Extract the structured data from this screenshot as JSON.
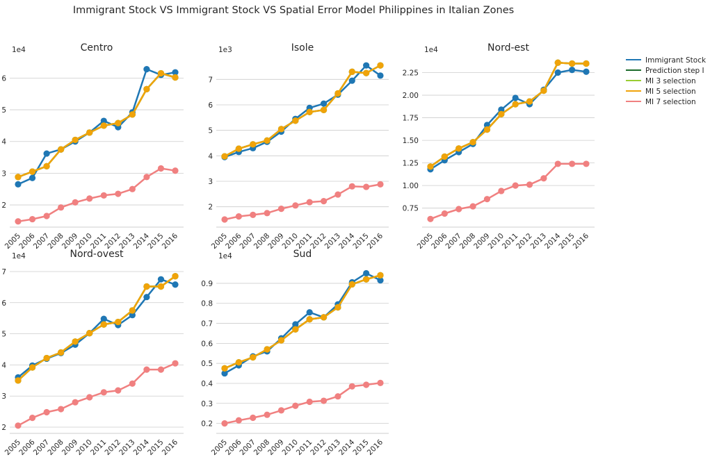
{
  "figure": {
    "title": "Immigrant Stock VS Immigrant Stock VS Spatial Error Model Philippines in Italian Zones"
  },
  "legend": {
    "placement": "right",
    "entries": [
      {
        "name": "Immigrant Stock",
        "color": "#1f77b4"
      },
      {
        "name": "Prediction step I",
        "color": "#1a6b2a"
      },
      {
        "name": "MI 3 selection",
        "color": "#9acd32"
      },
      {
        "name": "MI 5 selection",
        "color": "#f0a30a"
      },
      {
        "name": "MI 7 selection",
        "color": "#f08080"
      }
    ]
  },
  "chart_data": [
    {
      "type": "line",
      "title": "Centro",
      "offset_label": "1e4",
      "x": [
        "2005",
        "2006",
        "2007",
        "2008",
        "2009",
        "2010",
        "2011",
        "2012",
        "2013",
        "2014",
        "2015",
        "2016"
      ],
      "ylim": [
        1.3,
        6.6
      ],
      "yticks": [
        2,
        3,
        4,
        5,
        6
      ],
      "ytick_labels": [
        "2",
        "3",
        "4",
        "5",
        "6"
      ],
      "series": [
        {
          "name": "Immigrant Stock",
          "color": "#1f77b4",
          "values": [
            2.65,
            2.85,
            3.62,
            3.75,
            4.0,
            4.28,
            4.65,
            4.45,
            4.92,
            6.28,
            6.1,
            6.18
          ]
        },
        {
          "name": "Prediction step I",
          "color": "#1a6b2a",
          "values": [
            2.88,
            3.05,
            3.22,
            3.75,
            4.05,
            4.28,
            4.5,
            4.58,
            4.85,
            5.65,
            6.15,
            6.02
          ]
        },
        {
          "name": "MI 3 selection",
          "color": "#9acd32",
          "values": [
            2.88,
            3.05,
            3.22,
            3.75,
            4.05,
            4.28,
            4.5,
            4.58,
            4.85,
            5.65,
            6.15,
            6.02
          ]
        },
        {
          "name": "MI 5 selection",
          "color": "#f0a30a",
          "values": [
            2.88,
            3.05,
            3.22,
            3.75,
            4.05,
            4.28,
            4.5,
            4.58,
            4.85,
            5.65,
            6.15,
            6.02
          ]
        },
        {
          "name": "MI 7 selection",
          "color": "#f08080",
          "values": [
            1.48,
            1.55,
            1.65,
            1.92,
            2.08,
            2.2,
            2.3,
            2.35,
            2.5,
            2.88,
            3.15,
            3.08
          ]
        }
      ]
    },
    {
      "type": "line",
      "title": "Isole",
      "offset_label": "1e3",
      "x": [
        "2005",
        "2006",
        "2007",
        "2008",
        "2009",
        "2010",
        "2011",
        "2012",
        "2013",
        "2014",
        "2015",
        "2016"
      ],
      "ylim": [
        1.2,
        7.8
      ],
      "yticks": [
        2,
        3,
        4,
        5,
        6,
        7
      ],
      "ytick_labels": [
        "2",
        "3",
        "4",
        "5",
        "6",
        "7"
      ],
      "series": [
        {
          "name": "Immigrant Stock",
          "color": "#1f77b4",
          "values": [
            3.95,
            4.15,
            4.3,
            4.55,
            4.95,
            5.45,
            5.88,
            6.05,
            6.4,
            6.95,
            7.55,
            7.15
          ]
        },
        {
          "name": "Prediction step I",
          "color": "#1a6b2a",
          "values": [
            3.98,
            4.28,
            4.45,
            4.6,
            5.05,
            5.38,
            5.72,
            5.8,
            6.45,
            7.3,
            7.25,
            7.55
          ]
        },
        {
          "name": "MI 3 selection",
          "color": "#9acd32",
          "values": [
            3.98,
            4.28,
            4.45,
            4.6,
            5.05,
            5.38,
            5.72,
            5.8,
            6.45,
            7.3,
            7.25,
            7.55
          ]
        },
        {
          "name": "MI 5 selection",
          "color": "#f0a30a",
          "values": [
            3.98,
            4.28,
            4.45,
            4.6,
            5.05,
            5.38,
            5.72,
            5.8,
            6.45,
            7.3,
            7.25,
            7.55
          ]
        },
        {
          "name": "MI 7 selection",
          "color": "#f08080",
          "values": [
            1.5,
            1.62,
            1.68,
            1.75,
            1.92,
            2.05,
            2.18,
            2.22,
            2.48,
            2.8,
            2.78,
            2.88
          ]
        }
      ]
    },
    {
      "type": "line",
      "title": "Nord-est",
      "offset_label": "1e4",
      "x": [
        "2005",
        "2006",
        "2007",
        "2008",
        "2009",
        "2010",
        "2011",
        "2012",
        "2013",
        "2014",
        "2015",
        "2016"
      ],
      "ylim": [
        0.54,
        2.4
      ],
      "yticks": [
        0.75,
        1.0,
        1.25,
        1.5,
        1.75,
        2.0,
        2.25
      ],
      "ytick_labels": [
        "0.75",
        "1.00",
        "1.25",
        "1.50",
        "1.75",
        "2.00",
        "2.25"
      ],
      "series": [
        {
          "name": "Immigrant Stock",
          "color": "#1f77b4",
          "values": [
            1.18,
            1.28,
            1.37,
            1.46,
            1.67,
            1.84,
            1.97,
            1.9,
            2.06,
            2.25,
            2.28,
            2.26
          ]
        },
        {
          "name": "Prediction step I",
          "color": "#1a6b2a",
          "values": [
            1.21,
            1.32,
            1.41,
            1.48,
            1.62,
            1.79,
            1.9,
            1.93,
            2.05,
            2.36,
            2.35,
            2.35
          ]
        },
        {
          "name": "MI 3 selection",
          "color": "#9acd32",
          "values": [
            1.21,
            1.32,
            1.41,
            1.48,
            1.62,
            1.79,
            1.9,
            1.93,
            2.05,
            2.36,
            2.35,
            2.35
          ]
        },
        {
          "name": "MI 5 selection",
          "color": "#f0a30a",
          "values": [
            1.21,
            1.32,
            1.41,
            1.48,
            1.62,
            1.79,
            1.9,
            1.93,
            2.05,
            2.36,
            2.35,
            2.35
          ]
        },
        {
          "name": "MI 7 selection",
          "color": "#f08080",
          "values": [
            0.63,
            0.69,
            0.74,
            0.77,
            0.85,
            0.94,
            1.0,
            1.01,
            1.08,
            1.24,
            1.24,
            1.24
          ]
        }
      ]
    },
    {
      "type": "line",
      "title": "Nord-ovest",
      "offset_label": "1e4",
      "x": [
        "2005",
        "2006",
        "2007",
        "2008",
        "2009",
        "2010",
        "2011",
        "2012",
        "2013",
        "2014",
        "2015",
        "2016"
      ],
      "ylim": [
        1.8,
        7.2
      ],
      "yticks": [
        2,
        3,
        4,
        5,
        6,
        7
      ],
      "ytick_labels": [
        "2",
        "3",
        "4",
        "5",
        "6",
        "7"
      ],
      "series": [
        {
          "name": "Immigrant Stock",
          "color": "#1f77b4",
          "values": [
            3.6,
            3.98,
            4.2,
            4.38,
            4.65,
            5.02,
            5.48,
            5.28,
            5.6,
            6.18,
            6.75,
            6.58
          ]
        },
        {
          "name": "Prediction step I",
          "color": "#1a6b2a",
          "values": [
            3.5,
            3.92,
            4.22,
            4.4,
            4.75,
            5.02,
            5.3,
            5.38,
            5.75,
            6.52,
            6.52,
            6.85
          ]
        },
        {
          "name": "MI 3 selection",
          "color": "#9acd32",
          "values": [
            3.5,
            3.92,
            4.22,
            4.4,
            4.75,
            5.02,
            5.3,
            5.38,
            5.75,
            6.52,
            6.52,
            6.85
          ]
        },
        {
          "name": "MI 5 selection",
          "color": "#f0a30a",
          "values": [
            3.5,
            3.92,
            4.22,
            4.4,
            4.75,
            5.02,
            5.3,
            5.38,
            5.75,
            6.52,
            6.52,
            6.85
          ]
        },
        {
          "name": "MI 7 selection",
          "color": "#f08080",
          "values": [
            2.05,
            2.3,
            2.48,
            2.58,
            2.8,
            2.96,
            3.12,
            3.18,
            3.4,
            3.85,
            3.85,
            4.05
          ]
        }
      ]
    },
    {
      "type": "line",
      "title": "Sud",
      "offset_label": "1e4",
      "x": [
        "2005",
        "2006",
        "2007",
        "2008",
        "2009",
        "2010",
        "2011",
        "2012",
        "2013",
        "2014",
        "2015",
        "2016"
      ],
      "ylim": [
        0.15,
        0.99
      ],
      "yticks": [
        0.2,
        0.3,
        0.4,
        0.5,
        0.6,
        0.7,
        0.8,
        0.9
      ],
      "ytick_labels": [
        "0.2",
        "0.3",
        "0.4",
        "0.5",
        "0.6",
        "0.7",
        "0.8",
        "0.9"
      ],
      "series": [
        {
          "name": "Immigrant Stock",
          "color": "#1f77b4",
          "values": [
            0.45,
            0.49,
            0.535,
            0.56,
            0.625,
            0.695,
            0.755,
            0.73,
            0.795,
            0.905,
            0.95,
            0.915
          ]
        },
        {
          "name": "Prediction step I",
          "color": "#1a6b2a",
          "values": [
            0.475,
            0.505,
            0.53,
            0.57,
            0.615,
            0.67,
            0.72,
            0.73,
            0.78,
            0.895,
            0.92,
            0.94
          ]
        },
        {
          "name": "MI 3 selection",
          "color": "#9acd32",
          "values": [
            0.475,
            0.505,
            0.53,
            0.57,
            0.615,
            0.67,
            0.72,
            0.73,
            0.78,
            0.895,
            0.92,
            0.94
          ]
        },
        {
          "name": "MI 5 selection",
          "color": "#f0a30a",
          "values": [
            0.475,
            0.505,
            0.53,
            0.57,
            0.615,
            0.67,
            0.72,
            0.73,
            0.78,
            0.895,
            0.92,
            0.94
          ]
        },
        {
          "name": "MI 7 selection",
          "color": "#f08080",
          "values": [
            0.2,
            0.215,
            0.228,
            0.243,
            0.265,
            0.288,
            0.308,
            0.313,
            0.335,
            0.385,
            0.393,
            0.402
          ]
        }
      ]
    }
  ]
}
